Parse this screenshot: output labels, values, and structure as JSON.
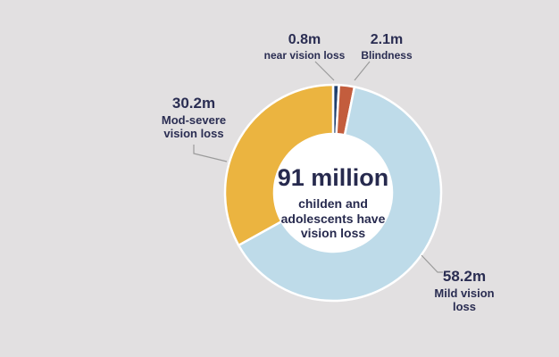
{
  "background_color": "#e2e0e1",
  "colors": {
    "near_vision_loss": "#1f3f6e",
    "blindness": "#c35d3d",
    "mild_vision_loss": "#bedbe9",
    "mod_severe_vision_loss": "#ebb440",
    "text": "#2a2d52",
    "leader_line": "#9b9b9b",
    "donut_hole": "#ffffff"
  },
  "chart_data": {
    "type": "pie",
    "donut": true,
    "direction": "clockwise",
    "start_angle_deg": 0,
    "title": "91 million",
    "subtitle": "childen and adolescents have vision loss",
    "total_m": 91.3,
    "legend_position": "callouts-around-chart",
    "segments": [
      {
        "id": "near-vision-loss",
        "label": "near vision loss",
        "value_m": 0.8,
        "value_label": "0.8m",
        "color": "#1f3f6e"
      },
      {
        "id": "blindness",
        "label": "Blindness",
        "value_m": 2.1,
        "value_label": "2.1m",
        "color": "#c35d3d"
      },
      {
        "id": "mild-vision-loss",
        "label": "Mild vision loss",
        "value_m": 58.2,
        "value_label": "58.2m",
        "color": "#bedbe9"
      },
      {
        "id": "mod-severe-vision-loss",
        "label": "Mod-severe vision loss",
        "value_m": 30.2,
        "value_label": "30.2m",
        "color": "#ebb440"
      }
    ]
  },
  "center": {
    "headline": "91 million",
    "subtext": "childen and adolescents have vision loss"
  },
  "labels": {
    "near": {
      "value": "0.8m",
      "name": "near vision loss"
    },
    "blindness": {
      "value": "2.1m",
      "name": "Blindness"
    },
    "modsevere": {
      "value": "30.2m",
      "name": "Mod-severe vision loss"
    },
    "mild": {
      "value": "58.2m",
      "name": "Mild vision loss"
    }
  }
}
